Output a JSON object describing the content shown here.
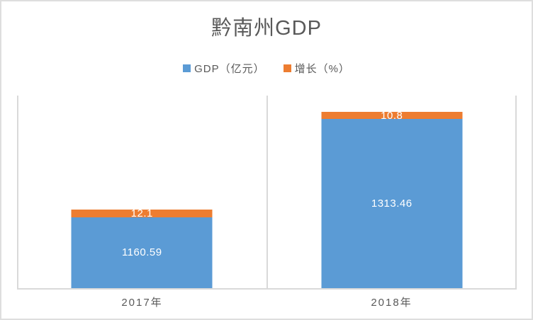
{
  "window": {
    "background": "#ffffff",
    "border_color": "#dedede"
  },
  "chart_data": {
    "type": "bar",
    "stacked": true,
    "title": "黔南州GDP",
    "categories": [
      "2017年",
      "2018年"
    ],
    "series": [
      {
        "name": "GDP（亿元）",
        "color": "#5b9bd5",
        "values": [
          1160.59,
          1313.46
        ]
      },
      {
        "name": "增长（%）",
        "color": "#ed7d31",
        "values": [
          12.1,
          10.8
        ]
      }
    ],
    "ylim": [
      1050,
      1350
    ],
    "legend_position": "top-center",
    "grid": "vertical-lines-at-category-boundaries",
    "axis_color": "#d9d9d9",
    "text_color": "#595959",
    "data_label_color": "#ffffff"
  }
}
